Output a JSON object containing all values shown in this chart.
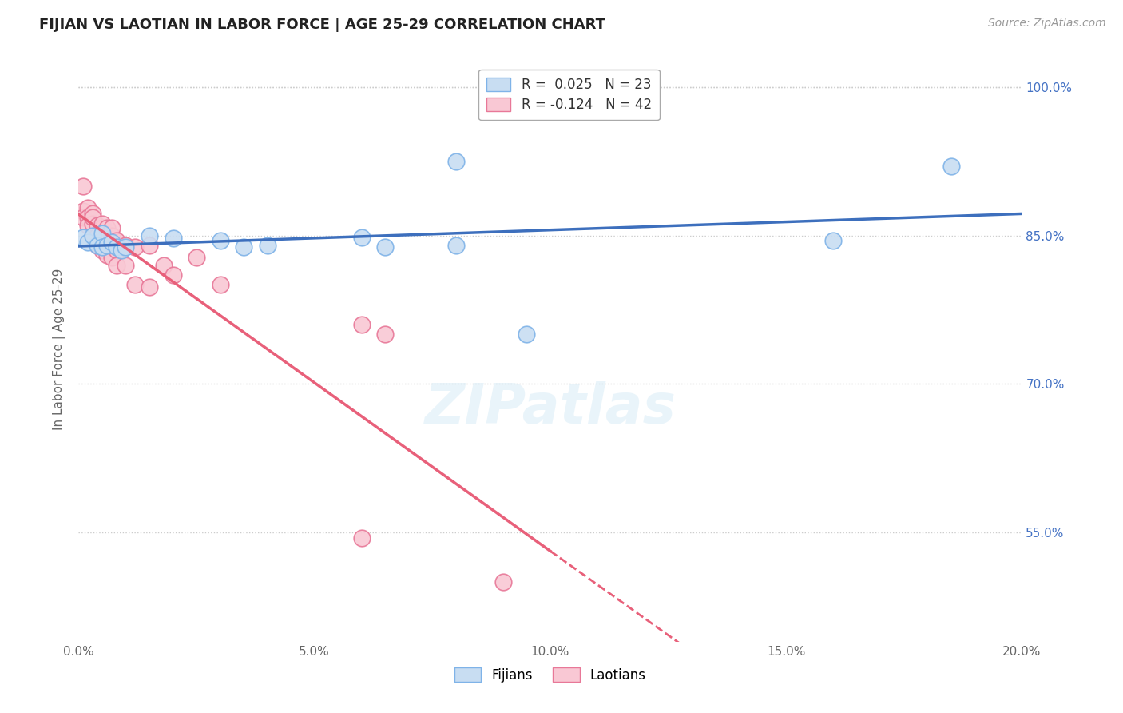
{
  "title": "FIJIAN VS LAOTIAN IN LABOR FORCE | AGE 25-29 CORRELATION CHART",
  "source_text": "Source: ZipAtlas.com",
  "ylabel": "In Labor Force | Age 25-29",
  "xlim": [
    0.0,
    0.2
  ],
  "ylim": [
    0.44,
    1.03
  ],
  "xtick_labels": [
    "0.0%",
    "5.0%",
    "10.0%",
    "15.0%",
    "20.0%"
  ],
  "xtick_vals": [
    0.0,
    0.05,
    0.1,
    0.15,
    0.2
  ],
  "ytick_labels": [
    "55.0%",
    "70.0%",
    "85.0%",
    "100.0%"
  ],
  "ytick_vals": [
    0.55,
    0.7,
    0.85,
    1.0
  ],
  "gridline_color": "#cccccc",
  "background_color": "#ffffff",
  "fijian_color": "#c8ddf2",
  "fijian_edge_color": "#7fb3e8",
  "laotian_color": "#f9c8d4",
  "laotian_edge_color": "#e87898",
  "fijian_R": 0.025,
  "fijian_N": 23,
  "laotian_R": -0.124,
  "laotian_N": 42,
  "trend_fijian_color": "#3d6fbd",
  "trend_laotian_color": "#e8607a",
  "legend_fijian_label": "Fijians",
  "legend_laotian_label": "Laotians",
  "watermark_text": "ZIPatlas",
  "fijian_x": [
    0.001,
    0.002,
    0.003,
    0.004,
    0.005,
    0.005,
    0.006,
    0.007,
    0.008,
    0.009,
    0.01,
    0.015,
    0.02,
    0.03,
    0.035,
    0.04,
    0.06,
    0.065,
    0.08,
    0.08,
    0.095,
    0.16,
    0.185
  ],
  "fijian_y": [
    0.848,
    0.843,
    0.85,
    0.84,
    0.852,
    0.838,
    0.84,
    0.843,
    0.838,
    0.835,
    0.838,
    0.85,
    0.847,
    0.845,
    0.838,
    0.84,
    0.848,
    0.838,
    0.925,
    0.84,
    0.75,
    0.845,
    0.92
  ],
  "laotian_x": [
    0.001,
    0.001,
    0.001,
    0.002,
    0.002,
    0.002,
    0.003,
    0.003,
    0.003,
    0.003,
    0.004,
    0.004,
    0.004,
    0.005,
    0.005,
    0.005,
    0.005,
    0.006,
    0.006,
    0.006,
    0.006,
    0.007,
    0.007,
    0.007,
    0.007,
    0.008,
    0.008,
    0.008,
    0.01,
    0.01,
    0.012,
    0.012,
    0.015,
    0.015,
    0.018,
    0.02,
    0.025,
    0.03,
    0.06,
    0.09,
    0.06,
    0.065
  ],
  "laotian_y": [
    0.875,
    0.868,
    0.9,
    0.878,
    0.868,
    0.86,
    0.872,
    0.862,
    0.85,
    0.868,
    0.86,
    0.85,
    0.84,
    0.858,
    0.845,
    0.862,
    0.835,
    0.858,
    0.848,
    0.84,
    0.83,
    0.85,
    0.84,
    0.828,
    0.858,
    0.845,
    0.835,
    0.82,
    0.84,
    0.82,
    0.838,
    0.8,
    0.84,
    0.798,
    0.82,
    0.81,
    0.828,
    0.8,
    0.545,
    0.5,
    0.76,
    0.75
  ],
  "top_dotted_line_y": 1.0,
  "right_ytick_color": "#4472c4",
  "trend_laotian_solid_end": 0.1,
  "trend_laotian_dash_end": 0.2
}
